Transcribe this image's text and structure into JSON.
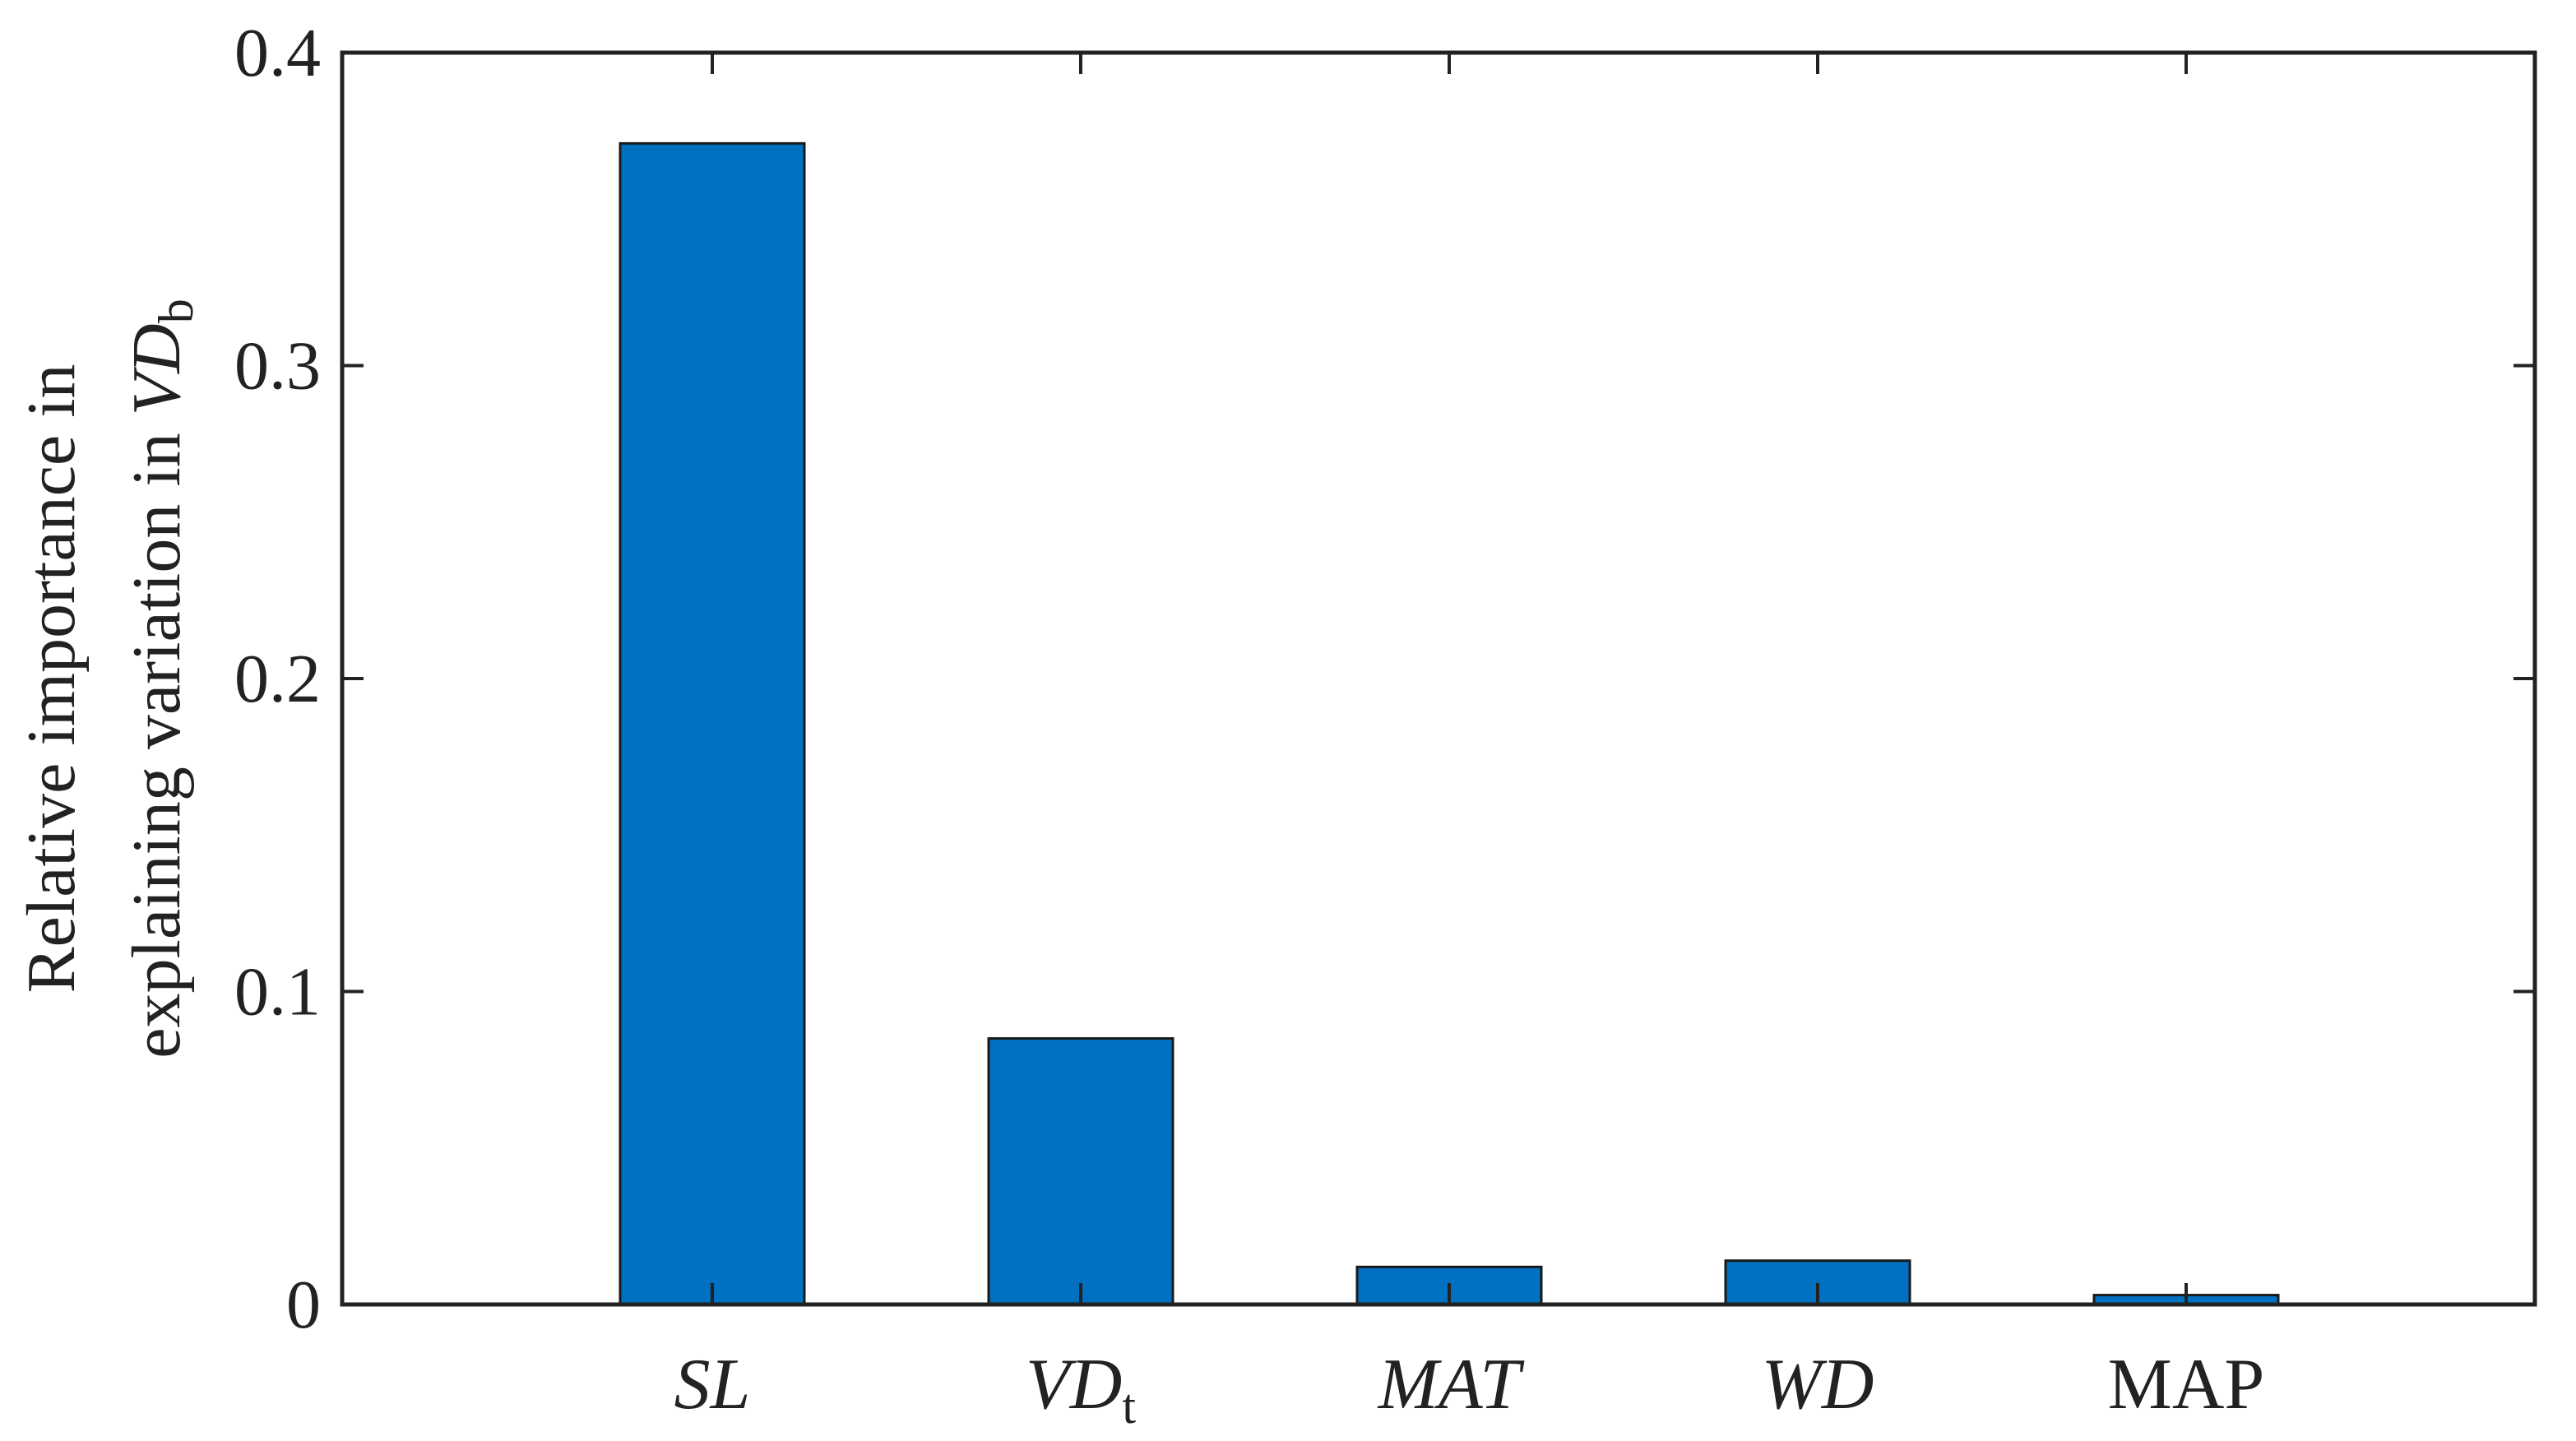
{
  "chart_data": {
    "type": "bar",
    "categories": [
      {
        "base": "SL",
        "sub": "",
        "italic": true
      },
      {
        "base": "VD",
        "sub": "t",
        "italic": true
      },
      {
        "base": "MAT",
        "sub": "",
        "italic": true
      },
      {
        "base": "WD",
        "sub": "",
        "italic": true
      },
      {
        "base": "MAP",
        "sub": "",
        "italic": false
      }
    ],
    "values": [
      0.371,
      0.085,
      0.012,
      0.014,
      0.003
    ],
    "ylim": [
      0,
      0.4
    ],
    "yticks": [
      0,
      0.1,
      0.2,
      0.3,
      0.4
    ],
    "ytick_labels": [
      "0",
      "0.1",
      "0.2",
      "0.3",
      "0.4"
    ],
    "ylabel": {
      "line1": "Relative importance in",
      "line2_prefix": "explaining variation in ",
      "line2_var": "VD",
      "line2_sub": "b"
    },
    "xlabel": "",
    "title": "",
    "grid": false,
    "legend": false,
    "bar_color": "#0070C0",
    "edge_color": "#1a1a1a",
    "axis_color": "#222222"
  }
}
